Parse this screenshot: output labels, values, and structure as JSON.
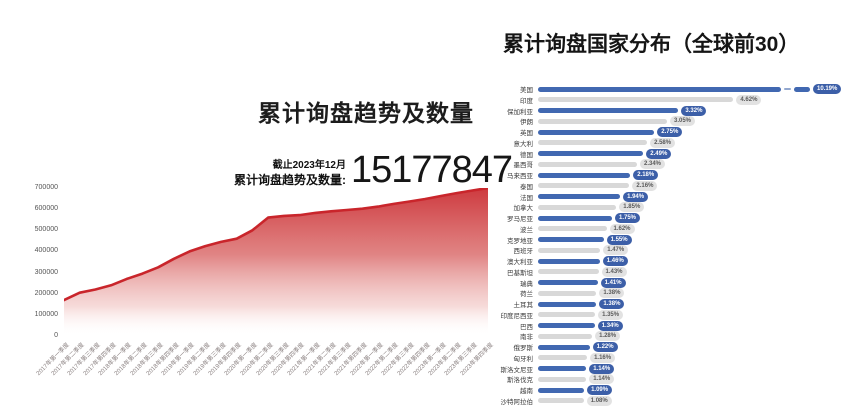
{
  "colors": {
    "bar_blue": "#4168b1",
    "bar_gray": "#d8d8d8",
    "line_red": "#c9252b",
    "fill_red_top": "#ca2b30"
  },
  "chart_data": [
    {
      "type": "area",
      "title": "累计询盘趋势及数量",
      "stat_note": "截止2023年12月",
      "stat_label": "累计询盘趋势及数量:",
      "stat_value": "15177847",
      "ylim": [
        0,
        700000
      ],
      "yticks": [
        700000,
        600000,
        500000,
        400000,
        300000,
        200000,
        100000,
        0
      ],
      "grid": false,
      "x": [
        "2017年第一季度",
        "2017年第二季度",
        "2017年第三季度",
        "2017年第四季度",
        "2018年第一季度",
        "2018年第二季度",
        "2018年第三季度",
        "2018年第四季度",
        "2019年第一季度",
        "2019年第二季度",
        "2019年第三季度",
        "2019年第四季度",
        "2020年第一季度",
        "2020年第二季度",
        "2020年第三季度",
        "2020年第四季度",
        "2021年第一季度",
        "2021年第二季度",
        "2021年第三季度",
        "2021年第四季度",
        "2022年第一季度",
        "2022年第二季度",
        "2022年第三季度",
        "2022年第四季度",
        "2023年第一季度",
        "2023年第二季度",
        "2023年第三季度",
        "2023年第四季度"
      ],
      "values": [
        170000,
        205000,
        220000,
        240000,
        270000,
        295000,
        325000,
        365000,
        400000,
        425000,
        445000,
        460000,
        500000,
        560000,
        568000,
        572000,
        582000,
        590000,
        596000,
        602000,
        612000,
        625000,
        636000,
        648000,
        662000,
        676000,
        688000,
        700000
      ]
    },
    {
      "type": "bar",
      "orientation": "horizontal",
      "title": "累计询盘国家分布（全球前30）",
      "value_unit": "%",
      "rows": [
        {
          "country": "美国",
          "value": 10.19,
          "label": "10.19%",
          "broken": true
        },
        {
          "country": "印度",
          "value": 4.62,
          "label": "4.62%"
        },
        {
          "country": "保加利亚",
          "value": 3.32,
          "label": "3.32%"
        },
        {
          "country": "伊朗",
          "value": 3.05,
          "label": "3.05%"
        },
        {
          "country": "英国",
          "value": 2.75,
          "label": "2.75%"
        },
        {
          "country": "意大利",
          "value": 2.58,
          "label": "2.58%"
        },
        {
          "country": "德国",
          "value": 2.49,
          "label": "2.49%"
        },
        {
          "country": "墨西哥",
          "value": 2.34,
          "label": "2.34%"
        },
        {
          "country": "马来西亚",
          "value": 2.18,
          "label": "2.18%"
        },
        {
          "country": "泰国",
          "value": 2.16,
          "label": "2.16%"
        },
        {
          "country": "法国",
          "value": 1.94,
          "label": "1.94%"
        },
        {
          "country": "加拿大",
          "value": 1.85,
          "label": "1.85%"
        },
        {
          "country": "罗马尼亚",
          "value": 1.75,
          "label": "1.75%"
        },
        {
          "country": "波兰",
          "value": 1.62,
          "label": "1.62%"
        },
        {
          "country": "克罗地亚",
          "value": 1.55,
          "label": "1.55%"
        },
        {
          "country": "西班牙",
          "value": 1.47,
          "label": "1.47%"
        },
        {
          "country": "澳大利亚",
          "value": 1.46,
          "label": "1.46%"
        },
        {
          "country": "巴基斯坦",
          "value": 1.43,
          "label": "1.43%"
        },
        {
          "country": "瑞典",
          "value": 1.41,
          "label": "1.41%"
        },
        {
          "country": "荷兰",
          "value": 1.38,
          "label": "1.38%"
        },
        {
          "country": "土耳其",
          "value": 1.38,
          "label": "1.38%"
        },
        {
          "country": "印度尼西亚",
          "value": 1.35,
          "label": "1.35%"
        },
        {
          "country": "巴西",
          "value": 1.34,
          "label": "1.34%"
        },
        {
          "country": "南非",
          "value": 1.28,
          "label": "1.28%"
        },
        {
          "country": "俄罗斯",
          "value": 1.22,
          "label": "1.22%"
        },
        {
          "country": "匈牙利",
          "value": 1.16,
          "label": "1.16%"
        },
        {
          "country": "斯洛文尼亚",
          "value": 1.14,
          "label": "1.14%"
        },
        {
          "country": "斯洛伐克",
          "value": 1.14,
          "label": "1.14%"
        },
        {
          "country": "越南",
          "value": 1.09,
          "label": "1.09%"
        },
        {
          "country": "沙特阿拉伯",
          "value": 1.08,
          "label": "1.08%"
        }
      ]
    }
  ]
}
